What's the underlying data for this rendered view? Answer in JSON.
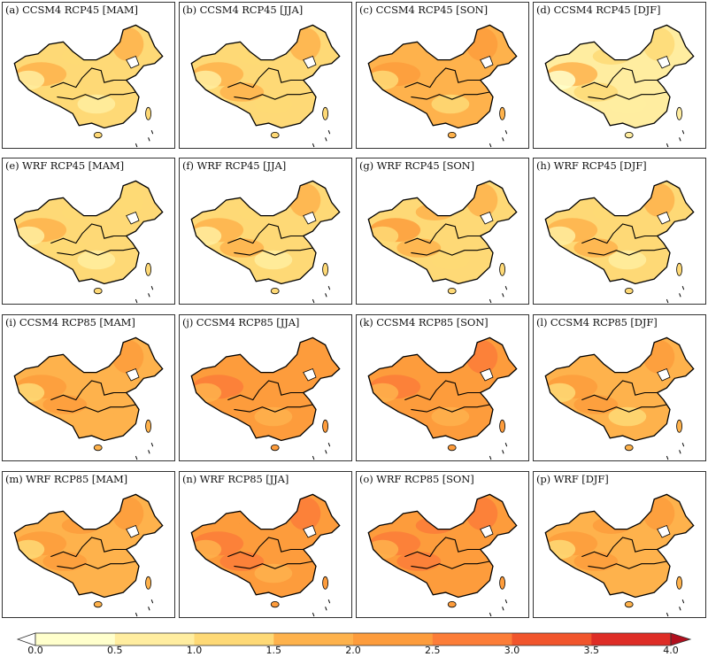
{
  "panels": [
    {
      "label": "(a) CCSM4 RCP45 [MAM]",
      "level": 1.05
    },
    {
      "label": "(b) CCSM4 RCP45 [JJA]",
      "level": 1.25
    },
    {
      "label": "(c) CCSM4 RCP45 [SON]",
      "level": 1.55
    },
    {
      "label": "(d) CCSM4 RCP45 [DJF]",
      "level": 0.95
    },
    {
      "label": "(e) WRF RCP45 [MAM]",
      "level": 1.0
    },
    {
      "label": "(f) WRF RCP45 [JJA]",
      "level": 1.2
    },
    {
      "label": "(g) WRF RCP45 [SON]",
      "level": 1.45
    },
    {
      "label": "(h) WRF RCP45 [DJF]",
      "level": 1.15
    },
    {
      "label": "(i) CCSM4 RCP85 [MAM]",
      "level": 1.75
    },
    {
      "label": "(j) CCSM4 RCP85 [JJA]",
      "level": 2.0
    },
    {
      "label": "(k) CCSM4 RCP85 [SON]",
      "level": 2.1
    },
    {
      "label": "(l) CCSM4 RCP85 [DJF]",
      "level": 1.65
    },
    {
      "label": "(m) WRF RCP85 [MAM]",
      "level": 1.9
    },
    {
      "label": "(n) WRF RCP85 [JJA]",
      "level": 2.15
    },
    {
      "label": "(o) WRF RCP85 [SON]",
      "level": 2.3
    },
    {
      "label": "(p) WRF [DJF]",
      "level": 1.85
    }
  ],
  "colorbar": {
    "ticks": [
      "0.0",
      "0.5",
      "1.0",
      "1.5",
      "2.0",
      "2.5",
      "3.0",
      "3.5",
      "4.0"
    ],
    "colors": [
      "#ffffcc",
      "#ffeda0",
      "#fed976",
      "#feb24c",
      "#fd9c3c",
      "#fc7d38",
      "#f1552c",
      "#de2d26"
    ],
    "under_color": "#ffffff",
    "over_color": "#b10f1e"
  }
}
